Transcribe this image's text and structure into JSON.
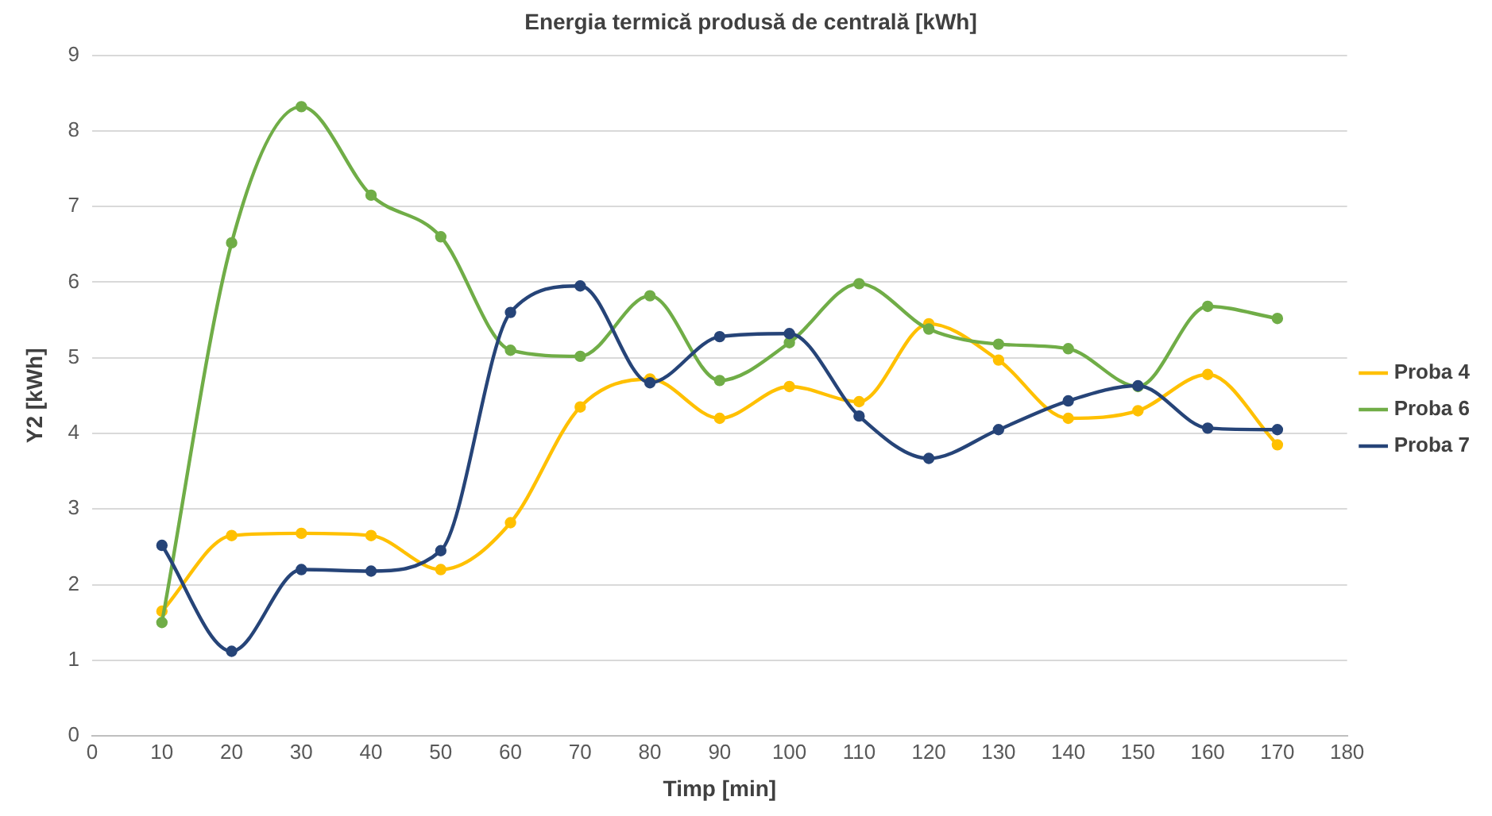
{
  "chart_data": {
    "type": "line",
    "title": "Energia termică produsă de centrală [kWh]",
    "xlabel": "Timp [min]",
    "ylabel": "Y2 [kWh]",
    "x": [
      10,
      20,
      30,
      40,
      50,
      60,
      70,
      80,
      90,
      100,
      110,
      120,
      130,
      140,
      150,
      160,
      170
    ],
    "series": [
      {
        "name": "Proba 4",
        "color": "#ffc000",
        "values": [
          1.65,
          2.65,
          2.68,
          2.65,
          2.2,
          2.82,
          4.35,
          4.72,
          4.2,
          4.62,
          4.42,
          5.45,
          4.97,
          4.2,
          4.3,
          4.78,
          3.85
        ]
      },
      {
        "name": "Proba 6",
        "color": "#70ad47",
        "values": [
          1.5,
          6.52,
          8.32,
          7.15,
          6.6,
          5.1,
          5.02,
          5.82,
          4.7,
          5.2,
          5.98,
          5.38,
          5.18,
          5.12,
          4.62,
          5.68,
          5.52
        ]
      },
      {
        "name": "Proba 7",
        "color": "#264478",
        "values": [
          2.52,
          1.12,
          2.2,
          2.18,
          2.45,
          5.6,
          5.95,
          4.67,
          5.28,
          5.32,
          4.23,
          3.67,
          4.05,
          4.43,
          4.63,
          4.07,
          4.05
        ]
      }
    ],
    "xlim": [
      0,
      180
    ],
    "xticks": [
      0,
      10,
      20,
      30,
      40,
      50,
      60,
      70,
      80,
      90,
      100,
      110,
      120,
      130,
      140,
      150,
      160,
      170,
      180
    ],
    "ylim": [
      0,
      9
    ],
    "yticks": [
      0,
      1,
      2,
      3,
      4,
      5,
      6,
      7,
      8,
      9
    ],
    "grid": "y",
    "legend": "right",
    "marker": "circle",
    "line_style": "solid"
  }
}
